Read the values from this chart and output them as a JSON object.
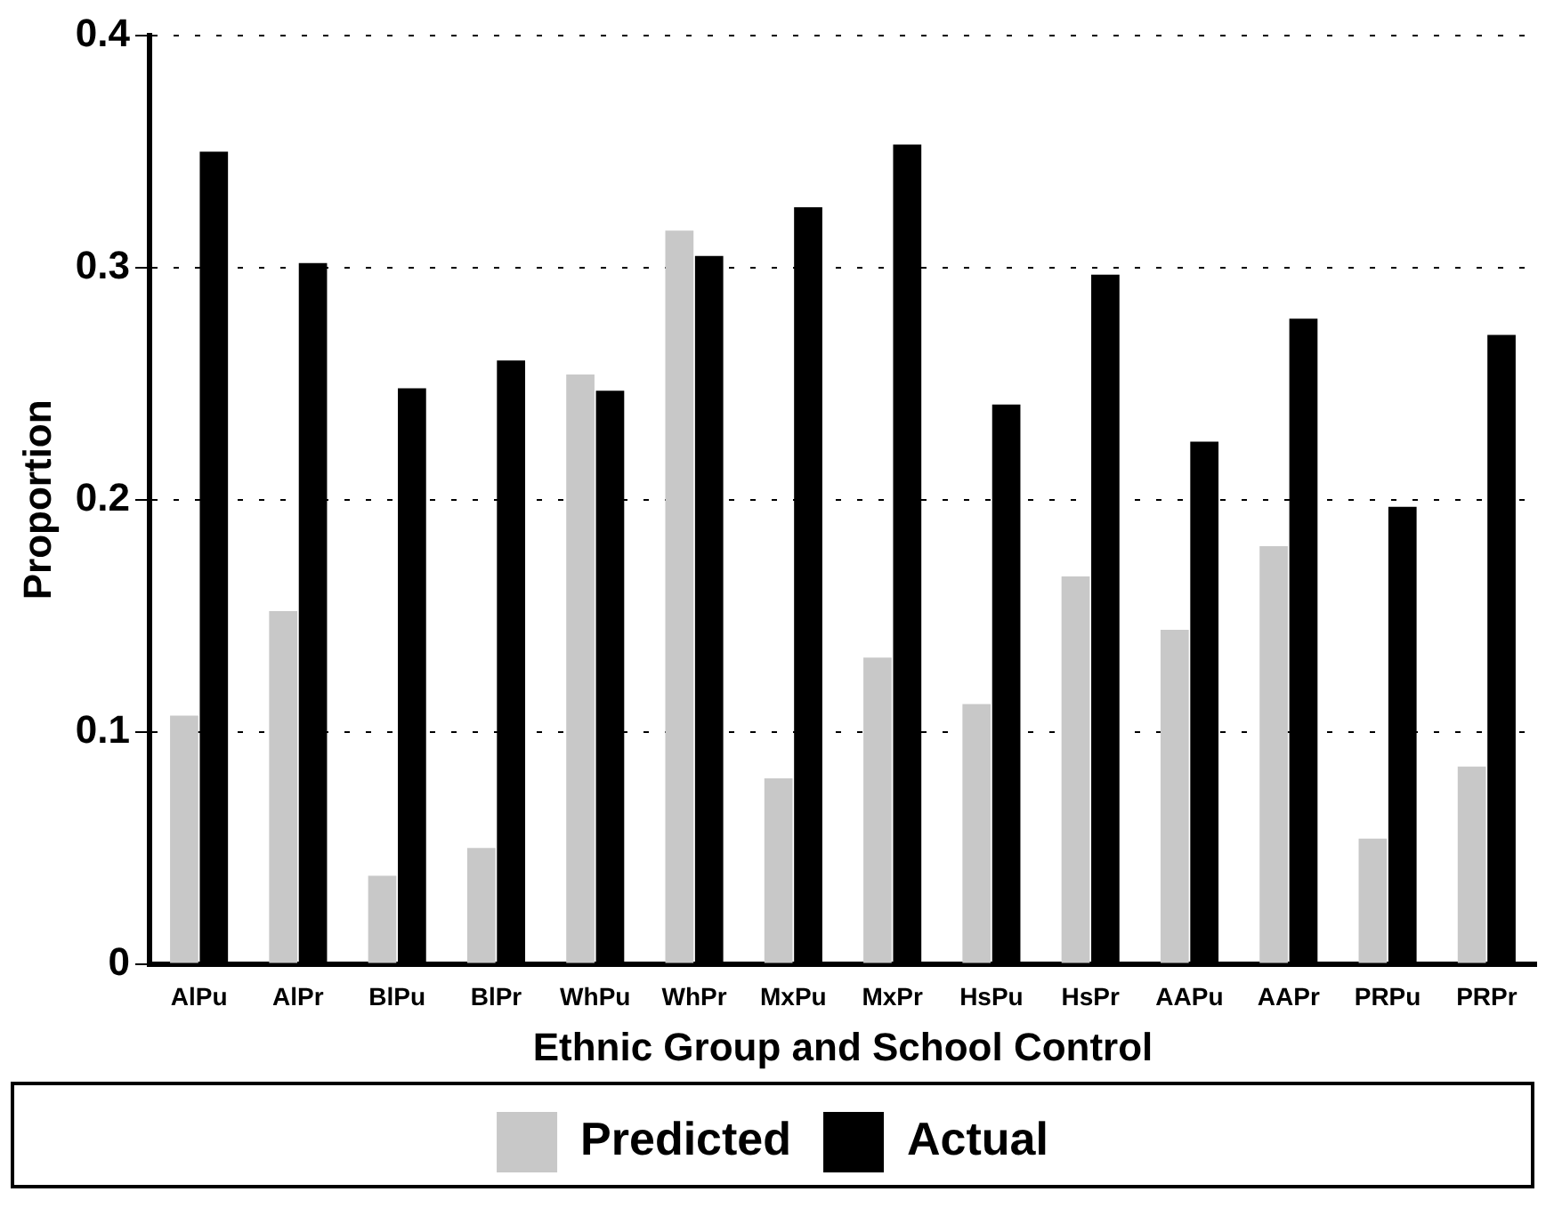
{
  "chart_data": {
    "type": "bar",
    "xlabel": "Ethnic Group and School Control",
    "ylabel": "Proportion",
    "categories": [
      "AlPu",
      "AlPr",
      "BlPu",
      "BlPr",
      "WhPu",
      "WhPr",
      "MxPu",
      "MxPr",
      "HsPu",
      "HsPr",
      "AAPu",
      "AAPr",
      "PRPu",
      "PRPr"
    ],
    "series": [
      {
        "name": "Predicted",
        "color": "#c8c8c8",
        "values": [
          0.107,
          0.152,
          0.038,
          0.05,
          0.254,
          0.316,
          0.08,
          0.132,
          0.112,
          0.167,
          0.144,
          0.18,
          0.054,
          0.085
        ]
      },
      {
        "name": "Actual",
        "color": "#000000",
        "values": [
          0.35,
          0.302,
          0.248,
          0.26,
          0.247,
          0.305,
          0.326,
          0.353,
          0.241,
          0.297,
          0.225,
          0.278,
          0.197,
          0.271
        ]
      }
    ],
    "ylim": [
      0,
      0.4
    ],
    "yticks": [
      0,
      0.1,
      0.2,
      0.3,
      0.4
    ],
    "grid": "y",
    "legend": "bottom"
  }
}
